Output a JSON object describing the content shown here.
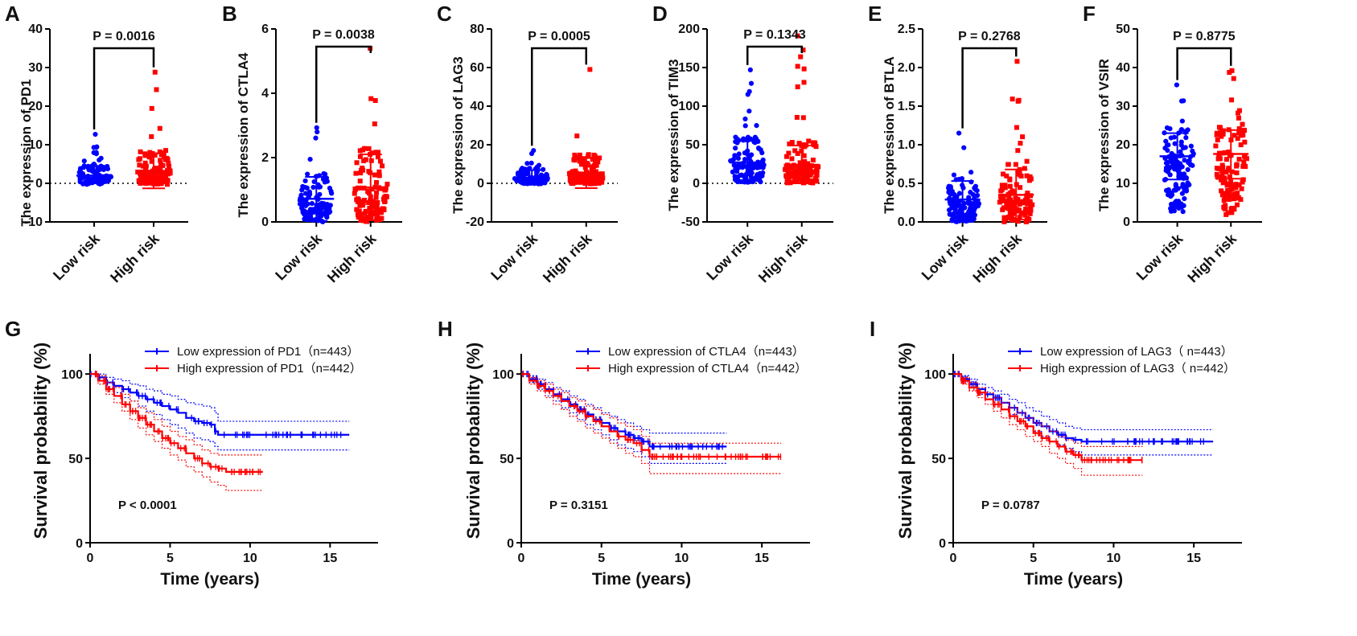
{
  "chart_data": [
    {
      "panel": "A",
      "type": "scatter",
      "ylabel": "The expression of PD1",
      "yticks": [
        -10,
        0,
        10,
        20,
        30,
        40
      ],
      "ylim": [
        -10,
        40
      ],
      "categories": [
        "Low risk",
        "High risk"
      ],
      "p_value": "P = 0.0016",
      "groups": [
        {
          "name": "Low risk",
          "color": "#0000ff",
          "mean": 2.0,
          "sd_low": 0.0,
          "sd_high": 4.5,
          "max": 12.7,
          "min": -0.3
        },
        {
          "name": "High risk",
          "color": "#ff0000",
          "mean": 3.2,
          "sd_low": -1.3,
          "sd_high": 7.8,
          "max": 28.8,
          "min": -0.3
        }
      ]
    },
    {
      "panel": "B",
      "type": "scatter",
      "ylabel": "The expression of CTLA4",
      "yticks": [
        0,
        2,
        4,
        6
      ],
      "ylim": [
        0,
        6
      ],
      "categories": [
        "Low risk",
        "High risk"
      ],
      "p_value": "P = 0.0038",
      "groups": [
        {
          "name": "Low risk",
          "color": "#0000ff",
          "mean": 0.72,
          "sd_low": 0.03,
          "sd_high": 1.4,
          "max": 2.93,
          "min": 0.0
        },
        {
          "name": "High risk",
          "color": "#ff0000",
          "mean": 1.07,
          "sd_low": 0.05,
          "sd_high": 2.1,
          "max": 5.4,
          "min": 0.0
        }
      ]
    },
    {
      "panel": "C",
      "type": "scatter",
      "ylabel": "The expression of LAG3",
      "yticks": [
        -20,
        0,
        20,
        40,
        60,
        80
      ],
      "ylim": [
        -20,
        80
      ],
      "categories": [
        "Low risk",
        "High risk"
      ],
      "p_value": "P = 0.0005",
      "groups": [
        {
          "name": "Low risk",
          "color": "#0000ff",
          "mean": 2.8,
          "sd_low": -0.5,
          "sd_high": 6.8,
          "max": 17.0,
          "min": -0.3
        },
        {
          "name": "High risk",
          "color": "#ff0000",
          "mean": 5.3,
          "sd_low": -2.5,
          "sd_high": 13.2,
          "max": 59.0,
          "min": -0.3
        }
      ]
    },
    {
      "panel": "D",
      "type": "scatter",
      "ylabel": "The expression of TIM3",
      "yticks": [
        -50,
        0,
        50,
        100,
        150,
        200
      ],
      "ylim": [
        -50,
        200
      ],
      "categories": [
        "Low risk",
        "High risk"
      ],
      "p_value": "P = 0.1343",
      "groups": [
        {
          "name": "Low risk",
          "color": "#0000ff",
          "mean": 27,
          "sd_low": 3,
          "sd_high": 55,
          "max": 147,
          "min": 1
        },
        {
          "name": "High risk",
          "color": "#ff0000",
          "mean": 24,
          "sd_low": 0,
          "sd_high": 49,
          "max": 191,
          "min": 0
        }
      ]
    },
    {
      "panel": "E",
      "type": "scatter",
      "ylabel": "The expression of BTLA",
      "yticks": [
        0.0,
        0.5,
        1.0,
        1.5,
        2.0,
        2.5
      ],
      "ylim": [
        0,
        2.5
      ],
      "categories": [
        "Low risk",
        "High risk"
      ],
      "p_value": "P = 0.2768",
      "groups": [
        {
          "name": "Low risk",
          "color": "#0000ff",
          "mean": 0.29,
          "sd_low": 0.05,
          "sd_high": 0.53,
          "max": 1.15,
          "min": 0.0
        },
        {
          "name": "High risk",
          "color": "#ff0000",
          "mean": 0.35,
          "sd_low": 0.03,
          "sd_high": 0.68,
          "max": 2.08,
          "min": 0.0
        }
      ]
    },
    {
      "panel": "F",
      "type": "scatter",
      "ylabel": "The expression of VSIR",
      "yticks": [
        0,
        10,
        20,
        30,
        40,
        50
      ],
      "ylim": [
        0,
        50
      ],
      "categories": [
        "Low risk",
        "High risk"
      ],
      "p_value": "P = 0.8775",
      "groups": [
        {
          "name": "Low risk",
          "color": "#0000ff",
          "mean": 17.0,
          "sd_low": 11.0,
          "sd_high": 23.0,
          "max": 35.5,
          "min": 2.5
        },
        {
          "name": "High risk",
          "color": "#ff0000",
          "mean": 17.6,
          "sd_low": 11.2,
          "sd_high": 23.8,
          "max": 39.2,
          "min": 1.5
        }
      ]
    },
    {
      "panel": "G",
      "type": "line",
      "xlabel": "Time (years)",
      "ylabel": "Survival probability (%)",
      "xticks": [
        0,
        5,
        10,
        15
      ],
      "yticks": [
        0,
        50,
        100
      ],
      "xlim": [
        0,
        18
      ],
      "ylim": [
        0,
        112
      ],
      "p_value": "P < 0.0001",
      "series": [
        {
          "name": "Low expression of PD1（n=443）",
          "color": "#0000ff",
          "x": [
            0,
            0.5,
            1,
            1.5,
            2,
            2.5,
            3,
            3.5,
            4,
            4.5,
            5,
            5.5,
            6,
            6.5,
            7,
            7.5,
            7.8,
            8,
            9,
            10,
            11,
            12,
            13,
            14,
            15,
            16.2
          ],
          "y": [
            100,
            98,
            95,
            93,
            91,
            89,
            87,
            85,
            83,
            81,
            79,
            77,
            74,
            72,
            71,
            70,
            66,
            64,
            64,
            64,
            64,
            64,
            64,
            64,
            64,
            64
          ],
          "ci_low": [
            100,
            96,
            92,
            89,
            86,
            84,
            81,
            78,
            76,
            73,
            70,
            68,
            65,
            62,
            61,
            60,
            57,
            55,
            55,
            55,
            55,
            55,
            55,
            55,
            55,
            55
          ],
          "ci_high": [
            100,
            100,
            98,
            97,
            96,
            94,
            93,
            91,
            90,
            88,
            87,
            85,
            83,
            82,
            81,
            80,
            77,
            72,
            72,
            72,
            72,
            72,
            72,
            72,
            72,
            72
          ]
        },
        {
          "name": "High expression of PD1（n=442）",
          "color": "#ff0000",
          "x": [
            0,
            0.5,
            1,
            1.5,
            2,
            2.5,
            3,
            3.5,
            4,
            4.5,
            5,
            5.5,
            6,
            6.5,
            7,
            7.5,
            8,
            8.5,
            9,
            10,
            10.8
          ],
          "y": [
            100,
            96,
            91,
            87,
            82,
            78,
            74,
            70,
            66,
            62,
            59,
            56,
            53,
            50,
            47,
            45,
            44,
            42,
            42,
            42,
            42
          ],
          "ci_low": [
            100,
            94,
            88,
            83,
            78,
            73,
            68,
            64,
            60,
            56,
            52,
            49,
            45,
            42,
            39,
            36,
            34,
            31,
            31,
            31,
            31
          ],
          "ci_high": [
            100,
            99,
            95,
            92,
            88,
            84,
            80,
            77,
            73,
            69,
            66,
            63,
            61,
            58,
            55,
            53,
            52,
            52,
            52,
            52,
            52
          ]
        }
      ]
    },
    {
      "panel": "H",
      "type": "line",
      "xlabel": "Time (years)",
      "ylabel": "Survival probability (%)",
      "xticks": [
        0,
        5,
        10,
        15
      ],
      "yticks": [
        0,
        50,
        100
      ],
      "xlim": [
        0,
        18
      ],
      "ylim": [
        0,
        112
      ],
      "p_value": "P = 0.3151",
      "series": [
        {
          "name": "Low expression of CTLA4（n=443）",
          "color": "#0000ff",
          "x": [
            0,
            0.5,
            1,
            1.5,
            2,
            2.5,
            3,
            3.5,
            4,
            4.5,
            5,
            5.5,
            6,
            6.5,
            7,
            7.5,
            8,
            9,
            10,
            11,
            12,
            12.8
          ],
          "y": [
            100,
            97,
            94,
            91,
            88,
            85,
            82,
            79,
            76,
            73,
            71,
            68,
            66,
            64,
            62,
            60,
            57,
            57,
            57,
            57,
            57,
            57
          ],
          "ci_low": [
            100,
            95,
            91,
            87,
            84,
            80,
            77,
            73,
            70,
            67,
            64,
            61,
            58,
            56,
            54,
            51,
            47,
            47,
            47,
            47,
            47,
            47
          ],
          "ci_high": [
            100,
            99,
            97,
            95,
            92,
            90,
            87,
            85,
            82,
            80,
            77,
            75,
            73,
            71,
            69,
            67,
            65,
            65,
            65,
            65,
            65,
            65
          ]
        },
        {
          "name": "High expression of CTLA4（n=442）",
          "color": "#ff0000",
          "x": [
            0,
            0.5,
            1,
            1.5,
            2,
            2.5,
            3,
            3.5,
            4,
            4.5,
            5,
            5.5,
            6,
            6.5,
            7,
            7.5,
            8,
            9,
            10,
            11,
            12,
            13,
            14,
            15,
            16.2
          ],
          "y": [
            100,
            96,
            93,
            90,
            87,
            84,
            81,
            78,
            75,
            72,
            69,
            66,
            63,
            61,
            59,
            55,
            51,
            51,
            51,
            51,
            51,
            51,
            51,
            51,
            51
          ],
          "ci_low": [
            100,
            94,
            90,
            86,
            82,
            79,
            75,
            72,
            68,
            65,
            62,
            59,
            56,
            53,
            51,
            47,
            41,
            41,
            41,
            41,
            41,
            41,
            41,
            41,
            41
          ],
          "ci_high": [
            100,
            98,
            96,
            94,
            91,
            89,
            86,
            84,
            81,
            79,
            76,
            74,
            71,
            69,
            67,
            63,
            59,
            59,
            59,
            59,
            59,
            59,
            59,
            59,
            59
          ]
        }
      ]
    },
    {
      "panel": "I",
      "type": "line",
      "xlabel": "Time (years)",
      "ylabel": "Survival probability (%)",
      "xticks": [
        0,
        5,
        10,
        15
      ],
      "yticks": [
        0,
        50,
        100
      ],
      "xlim": [
        0,
        18
      ],
      "ylim": [
        0,
        112
      ],
      "p_value": "P = 0.0787",
      "series": [
        {
          "name": "Low expression of LAG3（ n=443）",
          "color": "#0000ff",
          "x": [
            0,
            0.5,
            1,
            1.5,
            2,
            2.5,
            3,
            3.5,
            4,
            4.5,
            5,
            5.5,
            6,
            6.5,
            7,
            7.5,
            8,
            9,
            10,
            11,
            12,
            13,
            14,
            15,
            16.2
          ],
          "y": [
            100,
            97,
            94,
            91,
            88,
            86,
            83,
            80,
            77,
            74,
            71,
            69,
            66,
            64,
            62,
            61,
            60,
            60,
            60,
            60,
            60,
            60,
            60,
            60,
            60
          ],
          "ci_low": [
            100,
            96,
            92,
            88,
            85,
            82,
            79,
            76,
            72,
            69,
            66,
            63,
            60,
            58,
            56,
            54,
            52,
            52,
            52,
            52,
            52,
            52,
            52,
            52,
            52
          ],
          "ci_high": [
            100,
            99,
            97,
            94,
            92,
            90,
            88,
            85,
            83,
            80,
            78,
            75,
            73,
            71,
            69,
            68,
            67,
            67,
            67,
            67,
            67,
            67,
            67,
            67,
            67
          ]
        },
        {
          "name": "High expression of LAG3（ n=442）",
          "color": "#ff0000",
          "x": [
            0,
            0.5,
            1,
            1.5,
            2,
            2.5,
            3,
            3.5,
            4,
            4.5,
            5,
            5.5,
            6,
            6.5,
            7,
            7.5,
            8,
            9,
            10,
            11,
            11.8
          ],
          "y": [
            100,
            96,
            92,
            89,
            85,
            82,
            79,
            75,
            72,
            69,
            65,
            62,
            60,
            57,
            54,
            52,
            49,
            49,
            49,
            49,
            49
          ],
          "ci_low": [
            100,
            94,
            90,
            86,
            82,
            78,
            74,
            70,
            67,
            63,
            60,
            57,
            53,
            50,
            47,
            44,
            40,
            40,
            40,
            40,
            40
          ],
          "ci_high": [
            100,
            98,
            95,
            92,
            89,
            86,
            83,
            80,
            77,
            74,
            71,
            69,
            66,
            63,
            61,
            59,
            57,
            57,
            57,
            57,
            57
          ]
        }
      ]
    }
  ]
}
